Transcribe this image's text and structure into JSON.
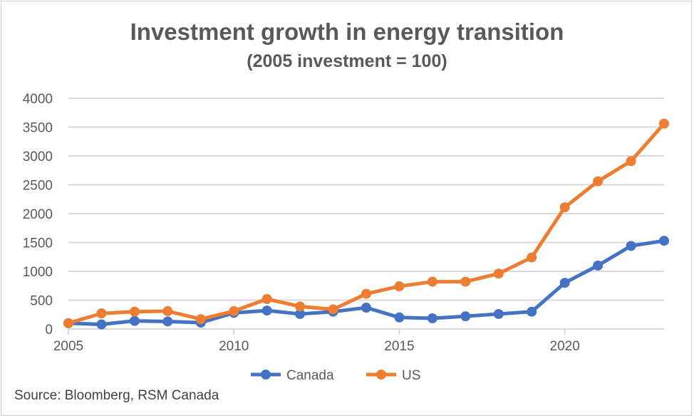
{
  "chart_data": {
    "type": "line",
    "title": "Investment growth in energy transition",
    "subtitle": "(2005 investment = 100)",
    "x": [
      2005,
      2006,
      2007,
      2008,
      2009,
      2010,
      2011,
      2012,
      2013,
      2014,
      2015,
      2016,
      2017,
      2018,
      2019,
      2020,
      2021,
      2022,
      2023
    ],
    "xticks": [
      "2005",
      "2010",
      "2015",
      "2020"
    ],
    "yticks": [
      "0",
      "500",
      "1000",
      "1500",
      "2000",
      "2500",
      "3000",
      "3500",
      "4000"
    ],
    "ylim": [
      0,
      4000
    ],
    "grid": true,
    "legend": "bottom",
    "series": [
      {
        "name": "Canada",
        "color": "#4472C4",
        "values": [
          100,
          80,
          140,
          130,
          110,
          280,
          320,
          260,
          300,
          370,
          200,
          185,
          220,
          260,
          300,
          800,
          1100,
          1440,
          1530
        ]
      },
      {
        "name": "US",
        "color": "#ED7D31",
        "values": [
          100,
          270,
          300,
          310,
          170,
          310,
          520,
          390,
          340,
          610,
          740,
          820,
          820,
          960,
          1240,
          2110,
          2560,
          2910,
          3560
        ]
      }
    ]
  },
  "source": "Source: Bloomberg, RSM Canada"
}
